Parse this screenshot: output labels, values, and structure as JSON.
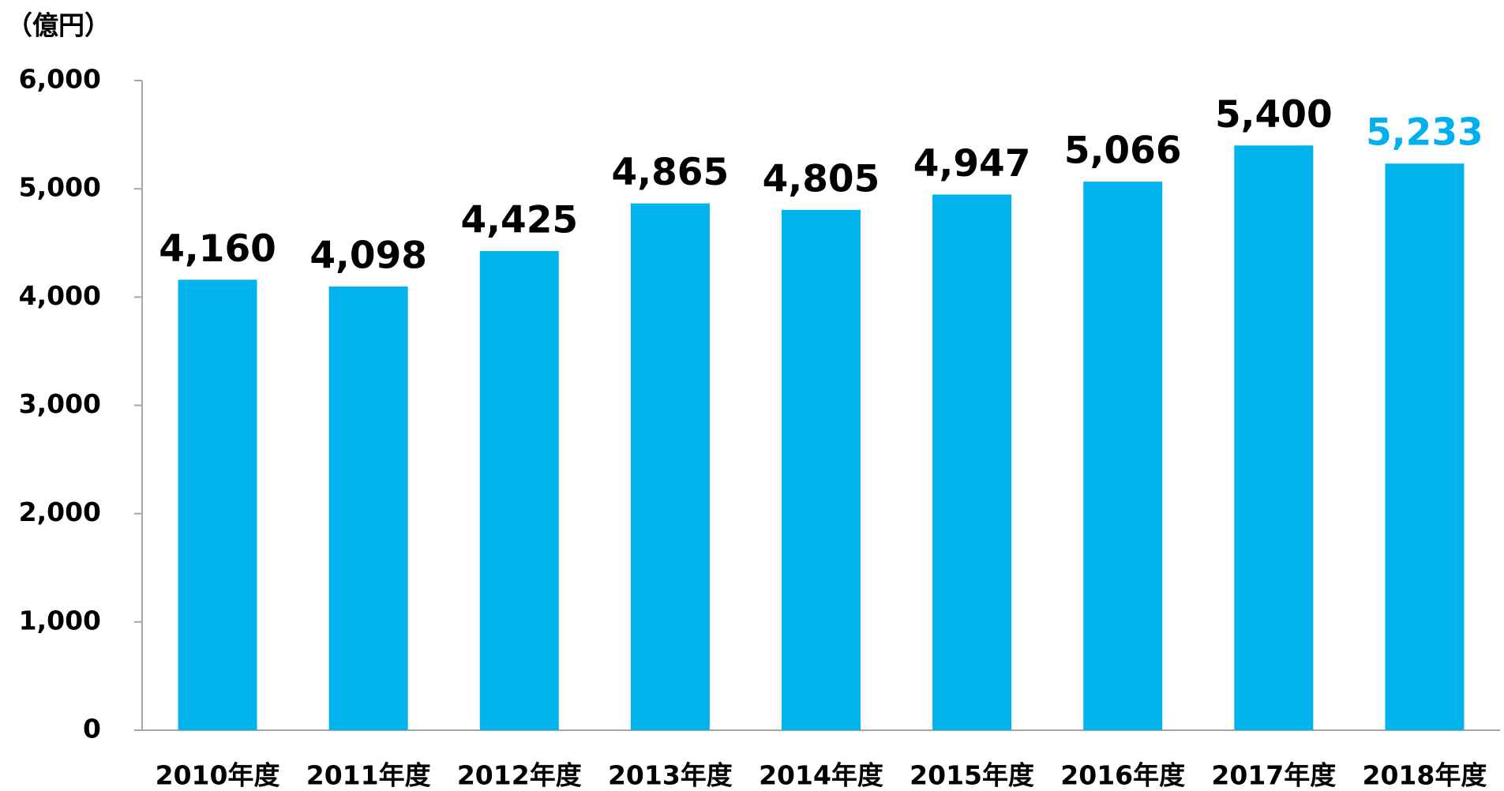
{
  "chart_data": {
    "type": "bar",
    "y_label": "（億円）",
    "categories": [
      "2010年度",
      "2011年度",
      "2012年度",
      "2013年度",
      "2014年度",
      "2015年度",
      "2016年度",
      "2017年度",
      "2018年度"
    ],
    "values": [
      4160,
      4098,
      4425,
      4865,
      4805,
      4947,
      5066,
      5400,
      5233
    ],
    "value_labels": [
      "4,160",
      "4,098",
      "4,425",
      "4,865",
      "4,805",
      "4,947",
      "5,066",
      "5,400",
      "5,233"
    ],
    "label_colors": [
      "#000000",
      "#000000",
      "#000000",
      "#000000",
      "#000000",
      "#000000",
      "#000000",
      "#000000",
      "#00b0ec"
    ],
    "color": "#00b3ec",
    "ylim": [
      0,
      6000
    ],
    "yticks": [
      0,
      {
        "value": 1000,
        "label": "1,000"
      },
      {
        "value": 2000,
        "label": "2,000"
      },
      {
        "value": 3000,
        "label": "3,000"
      },
      {
        "value": 4000,
        "label": "4,000"
      },
      {
        "value": 5000,
        "label": "5,000"
      },
      {
        "value": 6000,
        "label": "6,000"
      }
    ],
    "grid": false
  }
}
